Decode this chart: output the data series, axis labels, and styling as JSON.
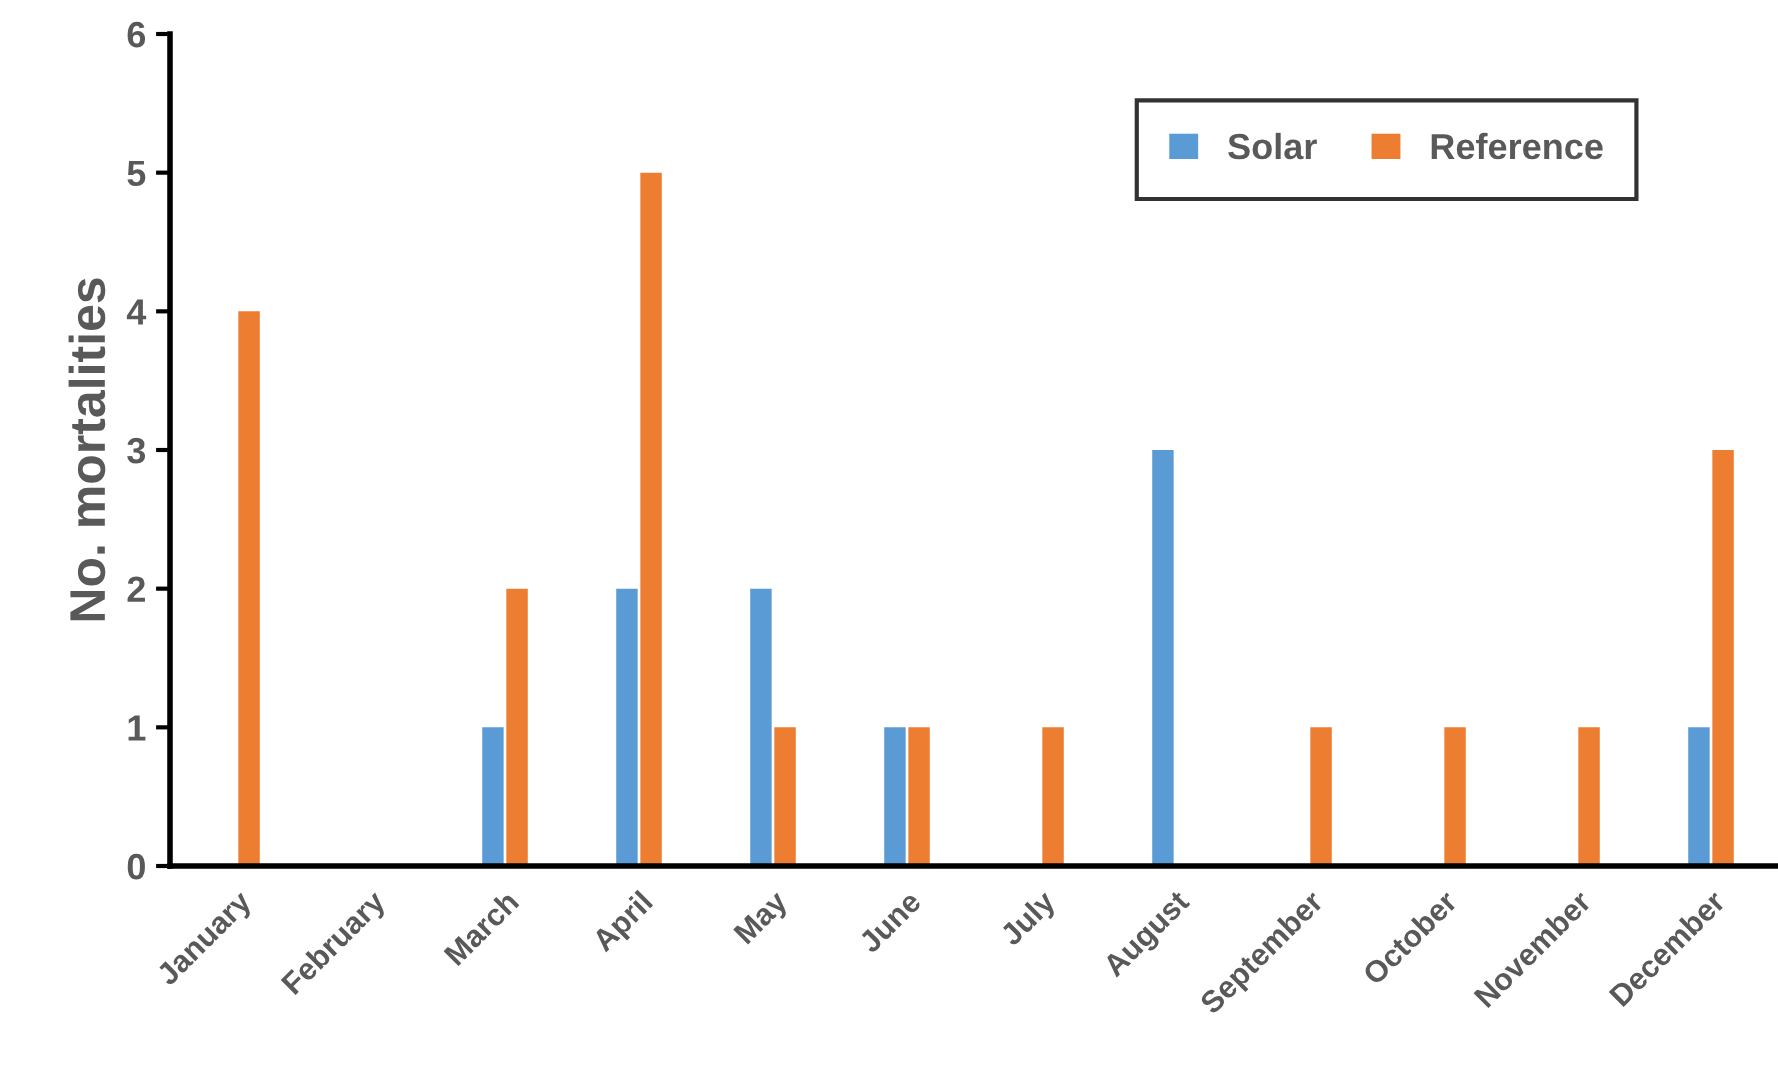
{
  "chart_data": {
    "type": "bar",
    "ylabel": "No. mortalities",
    "categories": [
      "January",
      "February",
      "March",
      "April",
      "May",
      "June",
      "July",
      "August",
      "September",
      "October",
      "November",
      "December"
    ],
    "series": [
      {
        "name": "Solar",
        "color": "#5b9bd5",
        "values": [
          0,
          0,
          1,
          2,
          2,
          1,
          0,
          3,
          0,
          0,
          0,
          1
        ]
      },
      {
        "name": "Reference",
        "color": "#ed7d31",
        "values": [
          4,
          0,
          2,
          5,
          1,
          1,
          1,
          0,
          1,
          1,
          1,
          3
        ]
      }
    ],
    "ylim": [
      0,
      6
    ],
    "yticks": [
      0,
      1,
      2,
      3,
      4,
      5,
      6
    ],
    "grid": false,
    "legend": "top right"
  }
}
